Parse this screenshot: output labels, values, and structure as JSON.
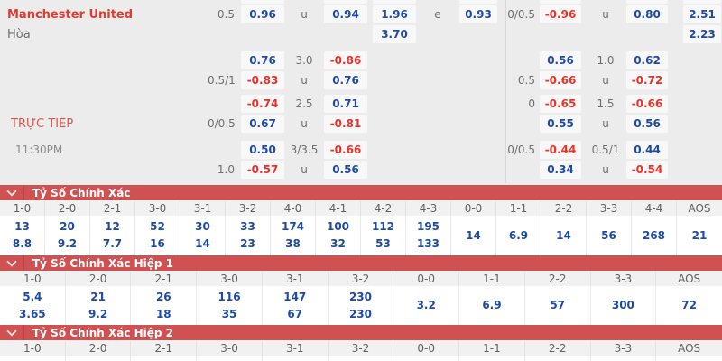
{
  "colors": {
    "section_bar_red": "#cf5152",
    "odds_positive_blue": "#1e4aa5",
    "odds_negative_red": "#e8332a",
    "team_name_red": "#e23b32",
    "live_label_red": "#e0544e",
    "label_gray": "#6e6e6e"
  },
  "odds_panel": {
    "home_team": "Manchester United",
    "draw_label": "Hòa",
    "live_label": "TRỰC TIẾP",
    "kickoff_time": "11:30PM",
    "rows": [
      {
        "name": "Manchester United",
        "kind": "team",
        "hdp1": "0.5",
        "box1": "0.96",
        "tot1": "u",
        "box2": "0.94",
        "x12": "1.96",
        "ecol": "e",
        "box3": "0.93",
        "hdp2": "0/0.5",
        "box4": "-0.96",
        "tot2": "u",
        "box5": "0.80",
        "boxF": "2.51"
      },
      {
        "name": "Hòa",
        "kind": "muted",
        "x12": "3.70",
        "boxF": "2.23"
      },
      {
        "box1": "0.76",
        "tot1": "3.0",
        "box2": "-0.86",
        "box4": "0.56",
        "tot2": "1.0",
        "box5": "0.62"
      },
      {
        "hdp1": "0.5/1",
        "box1": "-0.83",
        "tot1": "u",
        "box2": "0.76",
        "hdp2": "0.5",
        "box4": "-0.66",
        "tot2": "u",
        "box5": "-0.72"
      },
      {
        "box1": "-0.74",
        "tot1": "2.5",
        "box2": "0.71",
        "hdp2": "0",
        "box4": "-0.65",
        "tot2": "1.5",
        "box5": "-0.66"
      },
      {
        "name": "TRỰC TIẾP",
        "kind": "live",
        "hdp1": "0/0.5",
        "box1": "0.67",
        "tot1": "u",
        "box2": "-0.81",
        "box4": "0.55",
        "tot2": "u",
        "box5": "0.56"
      },
      {
        "name": "11:30PM",
        "kind": "time",
        "box1": "0.50",
        "tot1": "3/3.5",
        "box2": "-0.66",
        "hdp2": "0/0.5",
        "box4": "-0.44",
        "tot2": "0.5/1",
        "box5": "0.44"
      },
      {
        "hdp1": "1.0",
        "box1": "-0.57",
        "tot1": "u",
        "box2": "0.56",
        "box4": "0.34",
        "tot2": "u",
        "box5": "-0.54"
      }
    ]
  },
  "score_tables": [
    {
      "title": "Tỷ Số Chính Xác",
      "columns": [
        {
          "score": "1-0",
          "values": [
            "13",
            "8.8"
          ]
        },
        {
          "score": "2-0",
          "values": [
            "20",
            "9.2"
          ]
        },
        {
          "score": "2-1",
          "values": [
            "12",
            "7.7"
          ]
        },
        {
          "score": "3-0",
          "values": [
            "52",
            "16"
          ]
        },
        {
          "score": "3-1",
          "values": [
            "30",
            "14"
          ]
        },
        {
          "score": "3-2",
          "values": [
            "33",
            "23"
          ]
        },
        {
          "score": "4-0",
          "values": [
            "174",
            "38"
          ]
        },
        {
          "score": "4-1",
          "values": [
            "100",
            "32"
          ]
        },
        {
          "score": "4-2",
          "values": [
            "112",
            "53"
          ]
        },
        {
          "score": "4-3",
          "values": [
            "195",
            "133"
          ]
        },
        {
          "score": "0-0",
          "values": [
            "14"
          ]
        },
        {
          "score": "1-1",
          "values": [
            "6.9"
          ]
        },
        {
          "score": "2-2",
          "values": [
            "14"
          ]
        },
        {
          "score": "3-3",
          "values": [
            "56"
          ]
        },
        {
          "score": "4-4",
          "values": [
            "268"
          ]
        },
        {
          "score": "AOS",
          "values": [
            "21"
          ]
        }
      ]
    },
    {
      "title": "Tỷ Số Chính Xác Hiệp 1",
      "columns": [
        {
          "score": "1-0",
          "values": [
            "5.4",
            "3.65"
          ]
        },
        {
          "score": "2-0",
          "values": [
            "21",
            "9.2"
          ]
        },
        {
          "score": "2-1",
          "values": [
            "26",
            "18"
          ]
        },
        {
          "score": "3-0",
          "values": [
            "116",
            "35"
          ]
        },
        {
          "score": "3-1",
          "values": [
            "147",
            "67"
          ]
        },
        {
          "score": "3-2",
          "values": [
            "230",
            "230"
          ]
        },
        {
          "score": "0-0",
          "values": [
            "3.2"
          ]
        },
        {
          "score": "1-1",
          "values": [
            "6.9"
          ]
        },
        {
          "score": "2-2",
          "values": [
            "57"
          ]
        },
        {
          "score": "3-3",
          "values": [
            "300"
          ]
        },
        {
          "score": "AOS",
          "values": [
            "72"
          ]
        }
      ]
    },
    {
      "title": "Tỷ Số Chính Xác Hiệp 2",
      "columns": [
        {
          "score": "1-0",
          "values": []
        },
        {
          "score": "2-0",
          "values": []
        },
        {
          "score": "2-1",
          "values": []
        },
        {
          "score": "3-0",
          "values": []
        },
        {
          "score": "3-1",
          "values": []
        },
        {
          "score": "3-2",
          "values": []
        },
        {
          "score": "0-0",
          "values": []
        },
        {
          "score": "1-1",
          "values": []
        },
        {
          "score": "2-2",
          "values": []
        },
        {
          "score": "3-3",
          "values": []
        },
        {
          "score": "AOS",
          "values": []
        }
      ]
    }
  ]
}
